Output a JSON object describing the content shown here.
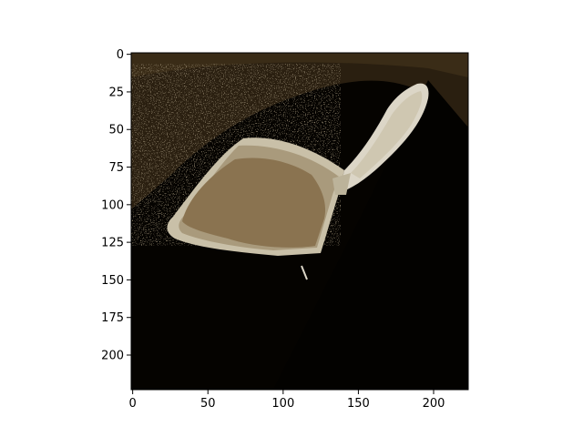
{
  "figure": {
    "background": "#ffffff",
    "image_description": "Posterized photo of a rice paddle / serving spoon with a light beige handle on a dark background",
    "image_palette": {
      "background_dark": "#050300",
      "background_brown": "#2a1f10",
      "background_speckle": "#5a4a30",
      "scoop_inner": "#8a7350",
      "scoop_mid": "#a99a7c",
      "scoop_light": "#c9c0a8",
      "handle_light": "#dcd6c7"
    },
    "axes": {
      "x": {
        "ticks": [
          "0",
          "50",
          "100",
          "150",
          "200"
        ],
        "tick_values": [
          0,
          50,
          100,
          150,
          200
        ],
        "range": [
          0,
          224
        ]
      },
      "y": {
        "ticks": [
          "0",
          "25",
          "50",
          "75",
          "100",
          "125",
          "150",
          "175",
          "200"
        ],
        "tick_values": [
          0,
          25,
          50,
          75,
          100,
          125,
          150,
          175,
          200
        ],
        "range": [
          0,
          224
        ],
        "inverted": true
      }
    }
  }
}
